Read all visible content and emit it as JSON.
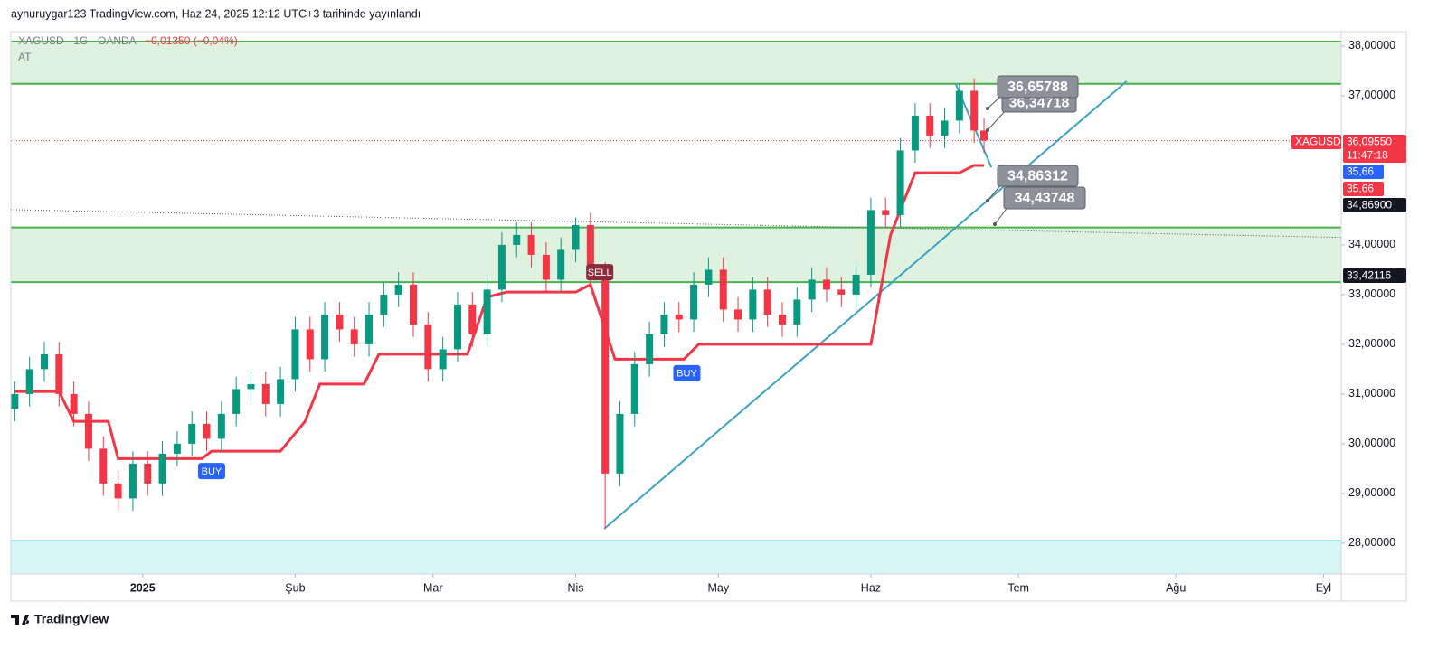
{
  "header": "aynuruygar123 TradingView.com, Haz 24, 2025 12:12 UTC+3 tarihinde yayınlandı",
  "legend": {
    "symbol": "XAGUSD · 1G · OANDA",
    "change": "−0,01350 (−0,04%)",
    "indicator": "AT"
  },
  "brand": "TradingView",
  "chart_data": {
    "type": "candlestick",
    "up_color": "#089981",
    "down_color": "#f23645",
    "xlim": [
      -26.8,
      243.6
    ],
    "ylim": [
      27.38,
      38.29
    ],
    "xticks": [
      {
        "value": 0,
        "label": "2025"
      },
      {
        "value": 31,
        "label": "Şub"
      },
      {
        "value": 59,
        "label": "Mar"
      },
      {
        "value": 88,
        "label": "Nis"
      },
      {
        "value": 117,
        "label": "May"
      },
      {
        "value": 148,
        "label": "Haz"
      },
      {
        "value": 178,
        "label": "Tem"
      },
      {
        "value": 210,
        "label": "Ağu"
      },
      {
        "value": 240,
        "label": "Eyl"
      }
    ],
    "yticks": [
      {
        "value": 38,
        "label": "38,00000"
      },
      {
        "value": 37,
        "label": "37,00000"
      },
      {
        "value": 34,
        "label": "34,00000"
      },
      {
        "value": 33,
        "label": "33,00000"
      },
      {
        "value": 32,
        "label": "32,00000"
      },
      {
        "value": 31,
        "label": "31,00000"
      },
      {
        "value": 30,
        "label": "30,00000"
      },
      {
        "value": 29,
        "label": "29,00000"
      },
      {
        "value": 28,
        "label": "28,00000"
      }
    ],
    "x": [
      -26,
      -23,
      -20,
      -17,
      -14,
      -11,
      -8,
      -5,
      -2,
      1,
      4,
      7,
      10,
      13,
      16,
      19,
      22,
      25,
      28,
      31,
      34,
      37,
      40,
      43,
      46,
      49,
      52,
      55,
      58,
      61,
      64,
      67,
      70,
      73,
      76,
      79,
      82,
      85,
      88,
      91,
      94,
      97,
      100,
      103,
      106,
      109,
      112,
      115,
      118,
      121,
      124,
      127,
      130,
      133,
      136,
      139,
      142,
      145,
      148,
      151,
      154,
      157,
      160,
      163,
      166,
      169,
      171
    ],
    "open": [
      30.7,
      31.0,
      31.5,
      31.8,
      31.0,
      30.6,
      29.9,
      29.2,
      28.9,
      29.6,
      29.2,
      29.8,
      30.0,
      30.4,
      30.1,
      30.6,
      31.1,
      31.2,
      30.8,
      31.3,
      32.3,
      31.7,
      32.6,
      32.3,
      32.0,
      32.6,
      33.0,
      33.2,
      32.4,
      31.5,
      31.9,
      32.8,
      32.2,
      33.1,
      34.0,
      34.2,
      33.8,
      33.3,
      33.9,
      34.4,
      33.4,
      29.4,
      30.6,
      31.6,
      32.2,
      32.6,
      32.5,
      33.2,
      33.5,
      32.7,
      32.5,
      33.1,
      32.6,
      32.4,
      32.9,
      33.3,
      33.1,
      33.0,
      33.4,
      34.7,
      34.6,
      35.9,
      36.6,
      36.2,
      36.5,
      37.1,
      36.3
    ],
    "high": [
      31.25,
      31.75,
      32.05,
      32.05,
      31.25,
      30.85,
      30.15,
      29.45,
      29.85,
      29.85,
      30.05,
      30.25,
      30.65,
      30.65,
      30.85,
      31.35,
      31.45,
      31.45,
      31.55,
      32.55,
      32.55,
      32.85,
      32.85,
      32.55,
      32.85,
      33.25,
      33.45,
      33.45,
      32.65,
      32.15,
      33.05,
      33.05,
      33.35,
      34.25,
      34.45,
      34.45,
      34.05,
      34.15,
      34.55,
      34.65,
      33.65,
      30.85,
      31.85,
      32.45,
      32.85,
      32.85,
      33.45,
      33.75,
      33.75,
      32.95,
      33.35,
      33.35,
      32.85,
      33.15,
      33.55,
      33.55,
      33.35,
      33.65,
      34.95,
      34.95,
      36.15,
      36.85,
      36.85,
      36.75,
      37.25,
      37.35,
      36.55
    ],
    "low": [
      30.45,
      30.75,
      31.25,
      30.75,
      30.35,
      29.65,
      28.95,
      28.65,
      28.65,
      28.95,
      28.95,
      29.55,
      29.75,
      29.85,
      29.85,
      30.35,
      30.85,
      30.55,
      30.55,
      31.05,
      31.45,
      31.45,
      32.05,
      31.75,
      31.75,
      32.35,
      32.75,
      32.15,
      31.25,
      31.25,
      31.65,
      31.95,
      31.95,
      32.85,
      33.75,
      33.55,
      33.05,
      33.05,
      33.65,
      33.15,
      28.3,
      29.15,
      30.35,
      31.35,
      31.95,
      32.25,
      32.25,
      32.95,
      32.45,
      32.25,
      32.25,
      32.35,
      32.15,
      32.15,
      32.65,
      32.85,
      32.75,
      32.75,
      33.15,
      34.35,
      34.35,
      35.65,
      35.95,
      35.95,
      36.25,
      36.05,
      35.85
    ],
    "close": [
      31.0,
      31.5,
      31.8,
      31.0,
      30.6,
      29.9,
      29.2,
      28.9,
      29.6,
      29.2,
      29.8,
      30.0,
      30.4,
      30.1,
      30.6,
      31.1,
      31.2,
      30.8,
      31.3,
      32.3,
      31.7,
      32.6,
      32.3,
      32.0,
      32.6,
      33.0,
      33.2,
      32.4,
      31.5,
      31.9,
      32.8,
      32.2,
      33.1,
      34.0,
      34.2,
      33.8,
      33.3,
      33.9,
      34.4,
      33.4,
      29.4,
      30.6,
      31.6,
      32.2,
      32.6,
      32.5,
      33.2,
      33.5,
      32.7,
      32.5,
      33.1,
      32.6,
      32.4,
      32.9,
      33.3,
      33.1,
      33.0,
      33.4,
      34.7,
      34.6,
      35.9,
      36.6,
      36.2,
      36.5,
      37.1,
      36.3,
      36.1
    ],
    "indicator": {
      "color": "#f23645",
      "x": [
        -26,
        -17,
        -14,
        -7,
        -5,
        12,
        14,
        28,
        33,
        36,
        45,
        48,
        66,
        70,
        74,
        88,
        91,
        96,
        110,
        113,
        148,
        152,
        157,
        166,
        169,
        171
      ],
      "values": [
        31.05,
        31.05,
        30.45,
        30.45,
        29.7,
        29.7,
        29.85,
        29.85,
        30.45,
        31.2,
        31.2,
        31.8,
        31.8,
        32.95,
        33.05,
        33.05,
        33.2,
        31.7,
        31.7,
        32.0,
        32.0,
        34.2,
        35.45,
        35.45,
        35.6,
        35.6
      ]
    },
    "zones": [
      {
        "from": 37.24,
        "to": 38.09,
        "color": "#4caf50"
      },
      {
        "from": 33.25,
        "to": 34.35,
        "color": "#4caf50"
      },
      {
        "from": 27.38,
        "to": 28.05,
        "color": "#26c6da"
      }
    ],
    "trendlines": [
      {
        "x": [
          93.8,
          200
        ],
        "values": [
          28.29,
          37.29
        ],
        "color": "#3aa3c6"
      },
      {
        "x": [
          165.2,
          172.5
        ],
        "values": [
          37.25,
          35.56
        ],
        "color": "#3aa3c6"
      },
      {
        "x": [
          -26.8,
          243.6
        ],
        "values": [
          34.71,
          34.15
        ],
        "color": "#555555"
      }
    ],
    "last_price": 36.0955,
    "signals": [
      {
        "label": "BUY",
        "x": 14,
        "y": 29.45,
        "color": "#2962ff"
      },
      {
        "label": "BUY",
        "x": 110.6,
        "y": 31.42,
        "color": "#2962ff"
      },
      {
        "label": "SELL",
        "x": 92.9,
        "y": 33.45,
        "color": "#8b2a3a"
      }
    ],
    "callouts": [
      "36,34718",
      "36,65788",
      "34,43748",
      "34,86312"
    ],
    "price_tags": [
      {
        "label": "XAGUSD",
        "color": "#f23645"
      },
      {
        "label": "36,09550",
        "color": "#f23645"
      },
      {
        "label": "11:47:18",
        "color": "#f23645"
      },
      {
        "label": "35,66",
        "color": "#2962ff"
      },
      {
        "label": "35,66",
        "color": "#f23645"
      },
      {
        "label": "34,86900",
        "color": "#131722"
      },
      {
        "label": "33,42116",
        "color": "#131722"
      }
    ]
  }
}
